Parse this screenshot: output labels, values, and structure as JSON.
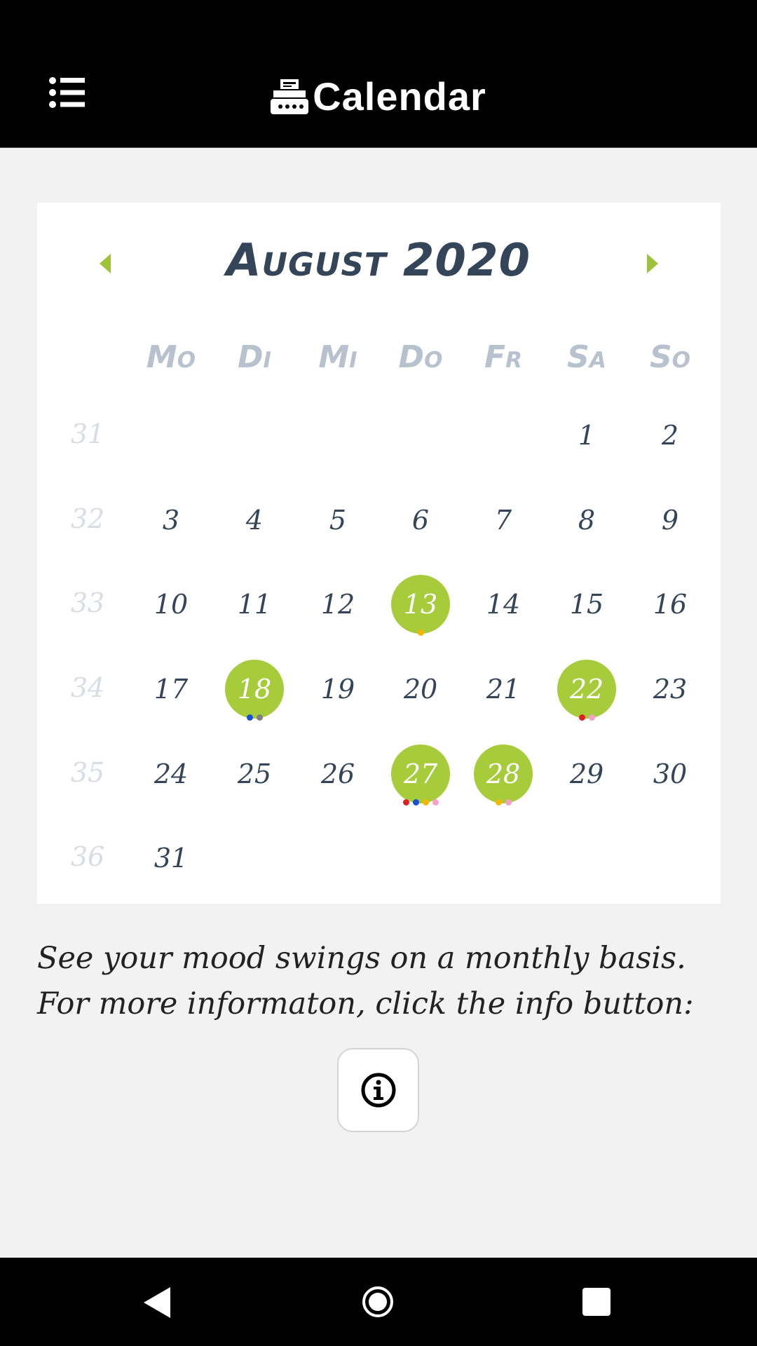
{
  "appbar": {
    "title": "Calendar",
    "menu_icon": "list-icon",
    "title_icon": "typewriter-icon"
  },
  "calendar": {
    "month_title": "August 2020",
    "weekdays": [
      "Mo",
      "Di",
      "Mi",
      "Do",
      "Fr",
      "Sa",
      "So"
    ],
    "weeks": [
      {
        "week": "31",
        "days": [
          "",
          "",
          "",
          "",
          "",
          "1",
          "2"
        ]
      },
      {
        "week": "32",
        "days": [
          "3",
          "4",
          "5",
          "6",
          "7",
          "8",
          "9"
        ]
      },
      {
        "week": "33",
        "days": [
          "10",
          "11",
          "12",
          "13",
          "14",
          "15",
          "16"
        ]
      },
      {
        "week": "34",
        "days": [
          "17",
          "18",
          "19",
          "20",
          "21",
          "22",
          "23"
        ]
      },
      {
        "week": "35",
        "days": [
          "24",
          "25",
          "26",
          "27",
          "28",
          "29",
          "30"
        ]
      },
      {
        "week": "36",
        "days": [
          "31",
          "",
          "",
          "",
          "",
          "",
          ""
        ]
      }
    ],
    "marked_days": {
      "13": [
        "#f5b800"
      ],
      "18": [
        "#1a4fd6",
        "#808080"
      ],
      "22": [
        "#e02020",
        "#f4a0c8"
      ],
      "27": [
        "#e02020",
        "#1a4fd6",
        "#f5b800",
        "#f4a0c8"
      ],
      "28": [
        "#f5b800",
        "#f4a0c8"
      ]
    },
    "accent_color": "#a6cc3b"
  },
  "description": "See your mood swings on a monthly basis. For more informaton, click the info button:",
  "info_button_icon": "info-icon"
}
